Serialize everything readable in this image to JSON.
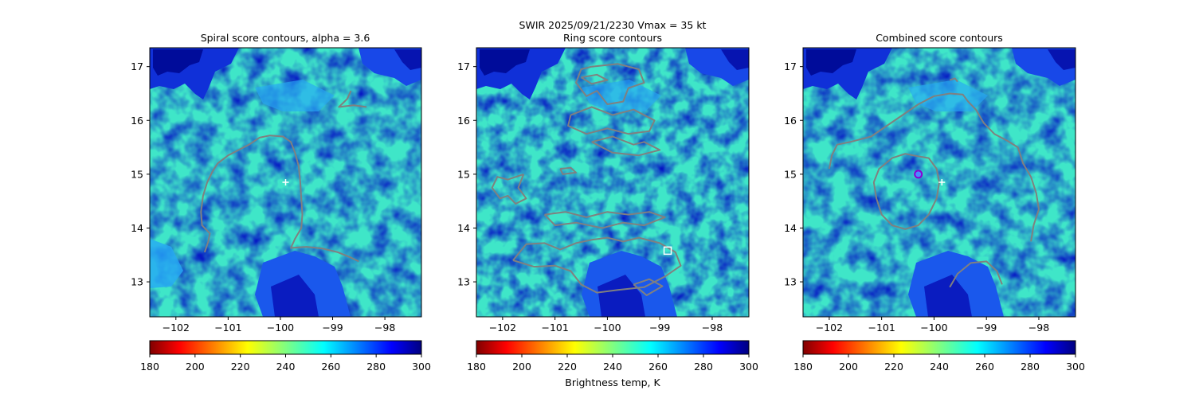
{
  "figure": {
    "suptitle_line1": "SWIR  2025/09/21/2230    Vmax = 35 kt",
    "colorbar_label": "Brightness temp, K"
  },
  "panels": [
    {
      "title": "Spiral score contours, alpha =  3.6"
    },
    {
      "title": "Ring score contours"
    },
    {
      "title": "Combined score contours"
    }
  ],
  "colors": {
    "contour": "#808080",
    "marker_plus": "#ffffff",
    "center_marker_edge": "#8a00d4",
    "center_marker_fill": "#4a8cff"
  },
  "chart_data": [
    {
      "type": "heatmap",
      "title": "Spiral score contours, alpha =  3.6",
      "xlim": [
        -102.5,
        -97.3
      ],
      "ylim": [
        12.35,
        17.35
      ],
      "xticks": [
        -102,
        -101,
        -100,
        -99,
        -98
      ],
      "xtick_labels": [
        "−102",
        "−101",
        "−100",
        "−99",
        "−98"
      ],
      "yticks": [
        13,
        14,
        15,
        16,
        17
      ],
      "ytick_labels": [
        "13",
        "14",
        "15",
        "16",
        "17"
      ],
      "colormap": "jet_r",
      "clim": [
        180,
        300
      ],
      "colorbar_ticks": [
        180,
        200,
        220,
        240,
        260,
        280,
        300
      ],
      "colorbar_ticklabels": [
        "180",
        "200",
        "220",
        "240",
        "260",
        "280",
        "300"
      ],
      "markers": [
        {
          "kind": "plus",
          "x": -99.9,
          "y": 14.85
        }
      ],
      "contours": [
        [
          [
            -101.45,
            13.55
          ],
          [
            -101.38,
            13.75
          ],
          [
            -101.35,
            13.9
          ],
          [
            -101.5,
            14.05
          ],
          [
            -101.52,
            14.3
          ],
          [
            -101.48,
            14.6
          ],
          [
            -101.4,
            14.85
          ],
          [
            -101.3,
            15.05
          ],
          [
            -101.2,
            15.2
          ],
          [
            -101.0,
            15.35
          ],
          [
            -100.8,
            15.45
          ],
          [
            -100.6,
            15.55
          ],
          [
            -100.4,
            15.68
          ],
          [
            -100.2,
            15.72
          ],
          [
            -99.95,
            15.7
          ],
          [
            -99.8,
            15.6
          ],
          [
            -99.72,
            15.4
          ],
          [
            -99.65,
            15.15
          ],
          [
            -99.62,
            14.85
          ],
          [
            -99.6,
            14.55
          ],
          [
            -99.58,
            14.25
          ],
          [
            -99.6,
            14.0
          ],
          [
            -99.72,
            13.8
          ],
          [
            -99.8,
            13.63
          ],
          [
            -99.5,
            13.65
          ],
          [
            -99.2,
            13.62
          ],
          [
            -98.9,
            13.55
          ],
          [
            -98.65,
            13.45
          ],
          [
            -98.5,
            13.38
          ]
        ],
        [
          [
            -98.65,
            16.55
          ],
          [
            -98.72,
            16.4
          ],
          [
            -98.88,
            16.25
          ],
          [
            -98.6,
            16.28
          ],
          [
            -98.35,
            16.25
          ]
        ]
      ]
    },
    {
      "type": "heatmap",
      "title": "Ring score contours",
      "xlim": [
        -102.5,
        -97.3
      ],
      "ylim": [
        12.35,
        17.35
      ],
      "xticks": [
        -102,
        -101,
        -100,
        -99,
        -98
      ],
      "xtick_labels": [
        "−102",
        "−101",
        "−100",
        "−99",
        "−98"
      ],
      "yticks": [
        13,
        14,
        15,
        16,
        17
      ],
      "ytick_labels": [
        "13",
        "14",
        "15",
        "16",
        "17"
      ],
      "colormap": "jet_r",
      "clim": [
        180,
        300
      ],
      "colorbar_ticks": [
        180,
        200,
        220,
        240,
        260,
        280,
        300
      ],
      "colorbar_ticklabels": [
        "180",
        "200",
        "220",
        "240",
        "260",
        "280",
        "300"
      ],
      "markers": [
        {
          "kind": "square",
          "x": -98.85,
          "y": 13.58
        }
      ],
      "contours": [
        [
          [
            -100.3,
            17.0
          ],
          [
            -99.8,
            17.05
          ],
          [
            -99.4,
            16.95
          ],
          [
            -99.3,
            16.7
          ],
          [
            -99.6,
            16.6
          ],
          [
            -99.7,
            16.35
          ],
          [
            -100.0,
            16.3
          ],
          [
            -100.2,
            16.55
          ],
          [
            -100.4,
            16.45
          ],
          [
            -100.6,
            16.7
          ],
          [
            -100.5,
            16.95
          ],
          [
            -100.3,
            17.0
          ]
        ],
        [
          [
            -100.7,
            16.1
          ],
          [
            -100.3,
            16.25
          ],
          [
            -99.9,
            16.1
          ],
          [
            -99.5,
            16.2
          ],
          [
            -99.1,
            16.0
          ],
          [
            -99.2,
            15.8
          ],
          [
            -99.6,
            15.75
          ],
          [
            -100.0,
            15.85
          ],
          [
            -100.4,
            15.75
          ],
          [
            -100.75,
            15.9
          ],
          [
            -100.7,
            16.1
          ]
        ],
        [
          [
            -101.6,
            15.0
          ],
          [
            -101.7,
            14.75
          ],
          [
            -101.55,
            14.55
          ],
          [
            -101.75,
            14.45
          ],
          [
            -101.9,
            14.6
          ],
          [
            -102.05,
            14.55
          ],
          [
            -102.2,
            14.75
          ],
          [
            -102.1,
            14.95
          ],
          [
            -101.9,
            14.9
          ],
          [
            -101.6,
            15.0
          ]
        ],
        [
          [
            -101.8,
            13.4
          ],
          [
            -101.55,
            13.7
          ],
          [
            -101.2,
            13.72
          ],
          [
            -100.9,
            13.6
          ],
          [
            -100.6,
            13.72
          ],
          [
            -100.3,
            13.78
          ],
          [
            -100.0,
            13.82
          ],
          [
            -99.7,
            13.75
          ],
          [
            -99.4,
            13.82
          ],
          [
            -99.0,
            13.72
          ],
          [
            -98.7,
            13.55
          ],
          [
            -98.6,
            13.3
          ],
          [
            -98.9,
            13.1
          ],
          [
            -99.3,
            12.9
          ],
          [
            -99.8,
            12.85
          ],
          [
            -100.2,
            12.8
          ],
          [
            -100.5,
            12.95
          ],
          [
            -100.7,
            13.2
          ],
          [
            -101.0,
            13.3
          ],
          [
            -101.4,
            13.28
          ],
          [
            -101.8,
            13.4
          ]
        ],
        [
          [
            -101.2,
            14.25
          ],
          [
            -100.8,
            14.3
          ],
          [
            -100.4,
            14.2
          ],
          [
            -100.0,
            14.3
          ],
          [
            -99.6,
            14.25
          ],
          [
            -99.2,
            14.3
          ],
          [
            -98.9,
            14.2
          ],
          [
            -99.3,
            14.05
          ],
          [
            -99.7,
            14.1
          ],
          [
            -100.1,
            14.0
          ],
          [
            -100.6,
            14.1
          ],
          [
            -101.0,
            14.05
          ],
          [
            -101.2,
            14.25
          ]
        ],
        [
          [
            -100.3,
            15.6
          ],
          [
            -99.9,
            15.7
          ],
          [
            -99.5,
            15.55
          ],
          [
            -99.3,
            15.6
          ],
          [
            -99.0,
            15.45
          ],
          [
            -99.4,
            15.35
          ],
          [
            -99.9,
            15.4
          ],
          [
            -100.3,
            15.6
          ]
        ],
        [
          [
            -100.5,
            16.8
          ],
          [
            -100.2,
            16.85
          ],
          [
            -100.0,
            16.75
          ],
          [
            -100.3,
            16.68
          ],
          [
            -100.5,
            16.8
          ]
        ],
        [
          [
            -100.9,
            15.1
          ],
          [
            -100.7,
            15.12
          ],
          [
            -100.6,
            15.03
          ],
          [
            -100.85,
            15.0
          ],
          [
            -100.9,
            15.1
          ]
        ],
        [
          [
            -99.5,
            12.95
          ],
          [
            -99.2,
            13.05
          ],
          [
            -98.95,
            12.92
          ],
          [
            -99.25,
            12.75
          ],
          [
            -99.5,
            12.95
          ]
        ]
      ]
    },
    {
      "type": "heatmap",
      "title": "Combined score contours",
      "xlim": [
        -102.5,
        -97.3
      ],
      "ylim": [
        12.35,
        17.35
      ],
      "xticks": [
        -102,
        -101,
        -100,
        -99,
        -98
      ],
      "xtick_labels": [
        "−102",
        "−101",
        "−100",
        "−99",
        "−98"
      ],
      "yticks": [
        13,
        14,
        15,
        16,
        17
      ],
      "ytick_labels": [
        "13",
        "14",
        "15",
        "16",
        "17"
      ],
      "colormap": "jet_r",
      "clim": [
        180,
        300
      ],
      "colorbar_ticks": [
        180,
        200,
        220,
        240,
        260,
        280,
        300
      ],
      "colorbar_ticklabels": [
        "180",
        "200",
        "220",
        "240",
        "260",
        "280",
        "300"
      ],
      "markers": [
        {
          "kind": "plus",
          "x": -99.85,
          "y": 14.85
        },
        {
          "kind": "circle",
          "x": -100.3,
          "y": 15.0
        }
      ],
      "contours": [
        [
          [
            -102.0,
            15.1
          ],
          [
            -101.95,
            15.35
          ],
          [
            -101.85,
            15.55
          ],
          [
            -101.6,
            15.6
          ],
          [
            -101.2,
            15.7
          ],
          [
            -100.9,
            15.9
          ],
          [
            -100.6,
            16.1
          ],
          [
            -100.3,
            16.3
          ],
          [
            -100.0,
            16.45
          ],
          [
            -99.7,
            16.5
          ],
          [
            -99.45,
            16.48
          ],
          [
            -99.35,
            16.35
          ],
          [
            -99.2,
            16.2
          ],
          [
            -99.05,
            15.95
          ],
          [
            -98.85,
            15.75
          ],
          [
            -98.6,
            15.62
          ],
          [
            -98.4,
            15.5
          ],
          [
            -98.3,
            15.2
          ],
          [
            -98.15,
            14.95
          ],
          [
            -98.05,
            14.65
          ],
          [
            -98.0,
            14.35
          ],
          [
            -98.1,
            14.05
          ],
          [
            -98.15,
            13.75
          ]
        ],
        [
          [
            -100.4,
            15.35
          ],
          [
            -100.1,
            15.3
          ],
          [
            -99.95,
            15.1
          ],
          [
            -99.9,
            14.85
          ],
          [
            -99.95,
            14.55
          ],
          [
            -100.1,
            14.25
          ],
          [
            -100.3,
            14.05
          ],
          [
            -100.55,
            13.98
          ],
          [
            -100.8,
            14.05
          ],
          [
            -101.0,
            14.25
          ],
          [
            -101.1,
            14.55
          ],
          [
            -101.15,
            14.85
          ],
          [
            -101.05,
            15.1
          ],
          [
            -100.8,
            15.3
          ],
          [
            -100.55,
            15.38
          ],
          [
            -100.4,
            15.35
          ]
        ],
        [
          [
            -99.7,
            12.9
          ],
          [
            -99.55,
            13.15
          ],
          [
            -99.3,
            13.35
          ],
          [
            -99.0,
            13.38
          ],
          [
            -98.8,
            13.2
          ],
          [
            -98.7,
            12.95
          ]
        ],
        [
          [
            -99.7,
            16.75
          ],
          [
            -99.6,
            16.78
          ],
          [
            -99.55,
            16.72
          ]
        ]
      ]
    }
  ]
}
